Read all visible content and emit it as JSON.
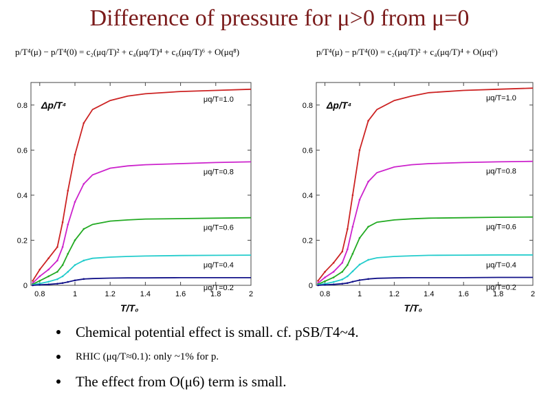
{
  "title": "Difference of pressure for μ>0 from μ=0",
  "formula_left": "p/T⁴(μ) − p/T⁴(0) = c₂(μq/T)² + c₄(μq/T)⁴ + c₆(μq/T)⁶ + O(μq⁸)",
  "formula_right": "p/T⁴(μ) − p/T⁴(0) = c₂(μq/T)² + c₄(μq/T)⁴ + O(μq⁶)",
  "chart_data": [
    {
      "type": "line",
      "ylabel": "Δp/T⁴",
      "xlabel": "T/T₀",
      "xlim": [
        0.75,
        2.0
      ],
      "ylim": [
        0,
        0.9
      ],
      "xticks": [
        "0.8",
        "1",
        "1.2",
        "1.4",
        "1.6",
        "1.8",
        "2"
      ],
      "yticks": [
        "0",
        "0.2",
        "0.4",
        "0.6",
        "0.8"
      ],
      "x": [
        0.76,
        0.8,
        0.85,
        0.9,
        0.93,
        0.96,
        1.0,
        1.05,
        1.1,
        1.2,
        1.3,
        1.4,
        1.6,
        1.8,
        2.0
      ],
      "series": [
        {
          "name": "μq/T=1.0",
          "color": "#cc2222",
          "values": [
            0.02,
            0.07,
            0.12,
            0.17,
            0.28,
            0.42,
            0.58,
            0.72,
            0.78,
            0.82,
            0.84,
            0.85,
            0.86,
            0.865,
            0.87
          ]
        },
        {
          "name": "μq/T=0.8",
          "color": "#cc22cc",
          "values": [
            0.01,
            0.04,
            0.07,
            0.11,
            0.17,
            0.27,
            0.37,
            0.45,
            0.49,
            0.52,
            0.53,
            0.535,
            0.54,
            0.545,
            0.548
          ]
        },
        {
          "name": "μq/T=0.6",
          "color": "#22aa22",
          "values": [
            0.005,
            0.02,
            0.04,
            0.06,
            0.09,
            0.14,
            0.2,
            0.25,
            0.27,
            0.285,
            0.29,
            0.294,
            0.296,
            0.298,
            0.3
          ]
        },
        {
          "name": "μq/T=0.4",
          "color": "#22cccc",
          "values": [
            0.002,
            0.008,
            0.016,
            0.027,
            0.04,
            0.06,
            0.09,
            0.11,
            0.12,
            0.125,
            0.128,
            0.13,
            0.132,
            0.133,
            0.134
          ]
        },
        {
          "name": "μq/T=0.2",
          "color": "#111188",
          "values": [
            0.0,
            0.002,
            0.004,
            0.007,
            0.01,
            0.015,
            0.022,
            0.028,
            0.03,
            0.032,
            0.033,
            0.033,
            0.034,
            0.034,
            0.034
          ]
        }
      ]
    },
    {
      "type": "line",
      "ylabel": "Δp/T⁴",
      "xlabel": "T/T₀",
      "xlim": [
        0.75,
        2.0
      ],
      "ylim": [
        0,
        0.9
      ],
      "xticks": [
        "0.8",
        "1",
        "1.2",
        "1.4",
        "1.6",
        "1.8",
        "2"
      ],
      "yticks": [
        "0",
        "0.2",
        "0.4",
        "0.6",
        "0.8"
      ],
      "x": [
        0.76,
        0.8,
        0.85,
        0.9,
        0.93,
        0.96,
        1.0,
        1.05,
        1.1,
        1.2,
        1.3,
        1.4,
        1.6,
        1.8,
        2.0
      ],
      "series": [
        {
          "name": "μq/T=1.0",
          "color": "#cc2222",
          "values": [
            0.02,
            0.06,
            0.1,
            0.15,
            0.25,
            0.4,
            0.6,
            0.73,
            0.78,
            0.82,
            0.84,
            0.855,
            0.865,
            0.87,
            0.875
          ]
        },
        {
          "name": "μq/T=0.8",
          "color": "#cc22cc",
          "values": [
            0.01,
            0.035,
            0.06,
            0.1,
            0.16,
            0.26,
            0.38,
            0.46,
            0.5,
            0.525,
            0.535,
            0.54,
            0.545,
            0.548,
            0.55
          ]
        },
        {
          "name": "μq/T=0.6",
          "color": "#22aa22",
          "values": [
            0.005,
            0.018,
            0.035,
            0.06,
            0.09,
            0.14,
            0.21,
            0.26,
            0.28,
            0.29,
            0.295,
            0.298,
            0.3,
            0.302,
            0.303
          ]
        },
        {
          "name": "μq/T=0.4",
          "color": "#22cccc",
          "values": [
            0.002,
            0.007,
            0.015,
            0.026,
            0.04,
            0.062,
            0.092,
            0.113,
            0.122,
            0.128,
            0.131,
            0.133,
            0.134,
            0.135,
            0.135
          ]
        },
        {
          "name": "μq/T=0.2",
          "color": "#111188",
          "values": [
            0.0,
            0.002,
            0.004,
            0.007,
            0.01,
            0.016,
            0.023,
            0.028,
            0.031,
            0.033,
            0.034,
            0.034,
            0.034,
            0.035,
            0.035
          ]
        }
      ]
    }
  ],
  "bullets": [
    "Chemical potential effect is small. cf. pSB/T4~4.",
    "RHIC (μq/T≈0.1): only ~1% for p.",
    "The effect from O(μ6) term is small."
  ]
}
